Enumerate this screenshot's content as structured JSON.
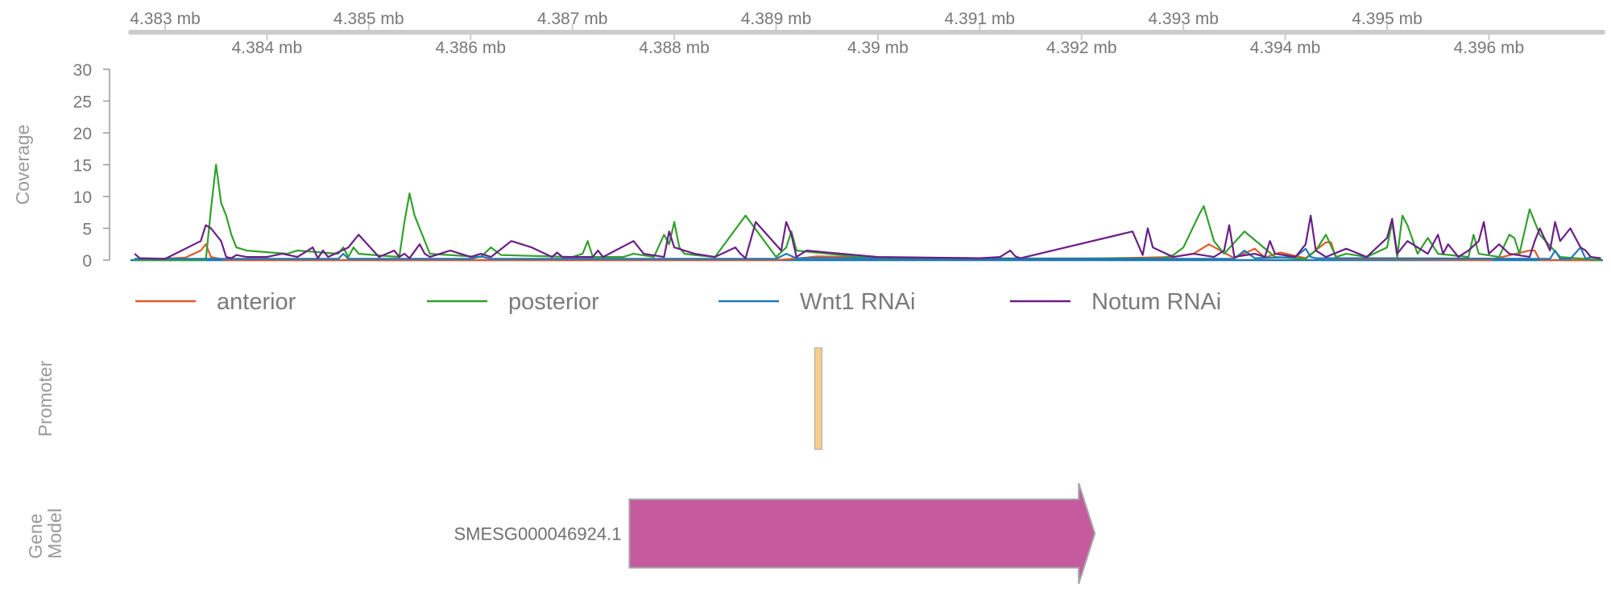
{
  "chart_data": {
    "type": "line",
    "genome_axis": {
      "unit_suffix": " mb",
      "range": [
        4.38266,
        4.39712
      ],
      "ticks_top": [
        4.383,
        4.385,
        4.387,
        4.389,
        4.391,
        4.393,
        4.395
      ],
      "ticks_bottom": [
        4.384,
        4.386,
        4.388,
        4.39,
        4.392,
        4.394,
        4.396
      ],
      "tick_labels_top": [
        "4.383 mb",
        "4.385 mb",
        "4.387 mb",
        "4.389 mb",
        "4.391 mb",
        "4.393 mb",
        "4.395 mb"
      ],
      "tick_labels_bottom": [
        "4.384 mb",
        "4.386 mb",
        "4.388 mb",
        "4.39 mb",
        "4.392 mb",
        "4.394 mb",
        "4.396 mb"
      ]
    },
    "coverage": {
      "ylabel": "Coverage",
      "ylim": [
        0,
        30
      ],
      "yticks": [
        0,
        5,
        10,
        15,
        20,
        25,
        30
      ],
      "ytick_labels": [
        "0",
        "5",
        "10",
        "15",
        "20",
        "25",
        "30"
      ],
      "series": [
        {
          "name": "anterior",
          "color": "#e05a2b",
          "x": [
            4.3827,
            4.3832,
            4.38335,
            4.3834,
            4.38345,
            4.3836,
            4.385,
            4.389,
            4.3893,
            4.3894,
            4.39,
            4.392,
            4.3929,
            4.3931,
            4.39325,
            4.3935,
            4.3937,
            4.3938,
            4.39395,
            4.3942,
            4.3944,
            4.39445,
            4.3945,
            4.396,
            4.3964,
            4.39645,
            4.3965,
            4.3971
          ],
          "values": [
            0,
            0.4,
            1.5,
            2.5,
            0.5,
            0,
            0,
            0,
            0.4,
            0.6,
            0.4,
            0.2,
            0.5,
            1.0,
            2.5,
            0.3,
            1.8,
            0.4,
            1.2,
            0.3,
            2.8,
            2.8,
            0.2,
            0,
            1.5,
            1.5,
            0,
            0
          ]
        },
        {
          "name": "posterior",
          "color": "#33a02c",
          "x": [
            4.3827,
            4.3834,
            4.38345,
            4.3835,
            4.38355,
            4.3836,
            4.38365,
            4.3837,
            4.3838,
            4.3842,
            4.3843,
            4.3847,
            4.38475,
            4.3848,
            4.38485,
            4.3849,
            4.3853,
            4.38535,
            4.3854,
            4.38545,
            4.3856,
            4.3861,
            4.3862,
            4.3863,
            4.387,
            4.3871,
            4.38715,
            4.3872,
            4.3875,
            4.3876,
            4.3878,
            4.3879,
            4.38795,
            4.388,
            4.38805,
            4.3881,
            4.3882,
            4.3884,
            4.3887,
            4.389,
            4.3891,
            4.38915,
            4.3892,
            4.39,
            4.3928,
            4.3929,
            4.393,
            4.39315,
            4.3932,
            4.3933,
            4.3934,
            4.3936,
            4.3939,
            4.3942,
            4.3943,
            4.3944,
            4.3945,
            4.3946,
            4.3948,
            4.395,
            4.39505,
            4.3951,
            4.39515,
            4.3952,
            4.3953,
            4.3954,
            4.3955,
            4.3958,
            4.39585,
            4.3959,
            4.3961,
            4.3962,
            4.39625,
            4.3963,
            4.3964,
            4.3965,
            4.3967,
            4.3971
          ],
          "values": [
            0,
            0,
            8,
            15,
            9,
            7,
            4,
            2,
            1.5,
            1,
            1.5,
            1,
            2,
            0.5,
            2,
            1,
            0.5,
            6,
            10.5,
            7,
            1,
            0.5,
            2,
            0.8,
            0.5,
            1,
            3,
            0.5,
            0.5,
            1,
            0.5,
            4,
            2.5,
            6,
            2,
            1,
            0.8,
            0.5,
            7,
            0.5,
            2,
            4.5,
            1.5,
            0.2,
            0.3,
            0.8,
            2,
            7,
            8.5,
            3,
            1,
            4.5,
            0.5,
            0.2,
            1.5,
            4,
            0.5,
            1,
            0.5,
            2,
            6,
            0.5,
            7,
            5.5,
            1,
            3.5,
            1,
            0.5,
            4,
            1,
            0.5,
            4,
            3.5,
            1,
            8,
            4,
            0.5,
            0
          ]
        },
        {
          "name": "Wnt1 RNAi",
          "color": "#1f78b4",
          "x": [
            4.3827,
            4.3847,
            4.38475,
            4.3848,
            4.386,
            4.3861,
            4.3862,
            4.389,
            4.3891,
            4.3892,
            4.3925,
            4.3935,
            4.3936,
            4.3937,
            4.3941,
            4.3942,
            4.39425,
            4.3943,
            4.3948,
            4.3966,
            4.39665,
            4.3967,
            4.3968,
            4.3969,
            4.39695,
            4.397,
            4.3971
          ],
          "values": [
            0.2,
            0.2,
            1,
            0.2,
            0.2,
            0.6,
            0.2,
            0.2,
            1,
            0.3,
            0.2,
            0.2,
            1.5,
            0.3,
            0.5,
            1.8,
            0.5,
            0.3,
            0.3,
            0.2,
            1.5,
            0.2,
            0.2,
            2,
            0.2,
            0.5,
            0.2
          ]
        },
        {
          "name": "Notum RNAi",
          "color": "#6a1f86",
          "x": [
            4.3827,
            4.38275,
            4.383,
            4.38335,
            4.3834,
            4.38345,
            4.38355,
            4.3836,
            4.38365,
            4.3837,
            4.3838,
            4.384,
            4.38415,
            4.3843,
            4.38445,
            4.3845,
            4.38455,
            4.3846,
            4.3848,
            4.3849,
            4.3851,
            4.38525,
            4.3853,
            4.38535,
            4.3854,
            4.3855,
            4.38555,
            4.3856,
            4.3858,
            4.386,
            4.3861,
            4.3862,
            4.3864,
            4.3866,
            4.3868,
            4.38685,
            4.3869,
            4.3872,
            4.38725,
            4.3873,
            4.3876,
            4.3877,
            4.3879,
            4.38795,
            4.388,
            4.3882,
            4.3884,
            4.3886,
            4.38865,
            4.3887,
            4.3888,
            4.38905,
            4.3891,
            4.38915,
            4.3892,
            4.3893,
            4.39,
            4.391,
            4.3912,
            4.3913,
            4.39135,
            4.3914,
            4.3925,
            4.3926,
            4.39265,
            4.3927,
            4.3929,
            4.3931,
            4.3933,
            4.3934,
            4.39345,
            4.3935,
            4.3937,
            4.3938,
            4.39385,
            4.3939,
            4.3941,
            4.3942,
            4.39425,
            4.3943,
            4.3944,
            4.3946,
            4.3948,
            4.395,
            4.39505,
            4.3951,
            4.3952,
            4.3953,
            4.3954,
            4.3955,
            4.39555,
            4.3956,
            4.3957,
            4.3958,
            4.3959,
            4.39595,
            4.396,
            4.3961,
            4.3962,
            4.3964,
            4.39645,
            4.3965,
            4.3966,
            4.39665,
            4.3967,
            4.3968,
            4.3969,
            4.39695,
            4.397,
            4.3971
          ],
          "values": [
            1,
            0.3,
            0.2,
            3,
            5.5,
            5,
            3,
            0.5,
            0.3,
            0.8,
            0.5,
            0.5,
            1,
            0.5,
            2,
            0.3,
            1.5,
            0.5,
            2,
            4,
            0.5,
            1.5,
            0.5,
            1,
            0.3,
            2.5,
            1,
            0.5,
            1.5,
            0.5,
            1,
            0.5,
            3,
            2,
            0.5,
            1.2,
            0.5,
            0.5,
            1.5,
            0.5,
            3,
            1,
            0.5,
            4.5,
            2,
            1,
            0.5,
            2,
            1,
            0.3,
            6,
            1.5,
            6,
            4,
            0.5,
            1.5,
            0.5,
            0.3,
            0.5,
            1.5,
            0.6,
            0.3,
            4.5,
            0.8,
            5,
            2,
            0.5,
            1,
            0.5,
            1.5,
            5.5,
            0.5,
            1,
            0.5,
            3,
            1,
            0.5,
            2.5,
            7,
            1.5,
            0.5,
            1.8,
            0.5,
            3.5,
            6.5,
            1,
            3,
            2,
            1,
            4,
            1,
            2.5,
            0.5,
            1.5,
            3,
            6,
            1,
            2.5,
            1,
            0.5,
            3,
            5,
            1.5,
            6,
            3,
            5,
            2,
            1.5,
            0.5,
            0.3
          ]
        }
      ]
    },
    "legend": {
      "position": "below-coverage",
      "entries": [
        {
          "label": "anterior",
          "color": "#e05a2b"
        },
        {
          "label": "posterior",
          "color": "#33a02c"
        },
        {
          "label": "Wnt1 RNAi",
          "color": "#1f78b4"
        },
        {
          "label": "Notum RNAi",
          "color": "#6a1f86"
        }
      ]
    },
    "promoter_track": {
      "ylabel": "Promoter",
      "features": [
        {
          "start": 4.38938,
          "end": 4.38945,
          "color": "#f7cf8a"
        }
      ]
    },
    "gene_track": {
      "ylabel_lines": [
        "Gene",
        "Model"
      ],
      "features": [
        {
          "label": "SMESG000046924.1",
          "start": 4.38756,
          "end": 4.39213,
          "strand": "+",
          "color": "#c55b9e"
        }
      ]
    }
  }
}
